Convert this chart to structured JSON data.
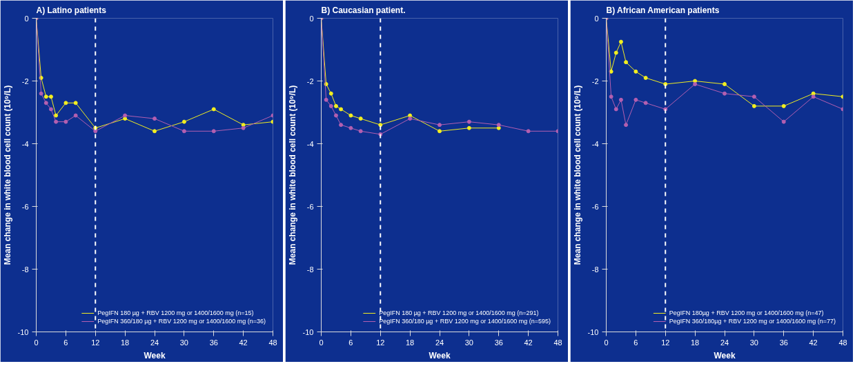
{
  "chart_data": [
    {
      "type": "line",
      "title": "A) Latino patients",
      "xlabel": "Week",
      "ylabel": "Mean change in white blood cell count (10⁹/L)",
      "x": [
        0,
        1,
        2,
        3,
        4,
        6,
        8,
        12,
        18,
        24,
        30,
        36,
        42,
        48
      ],
      "xlim": [
        0,
        48
      ],
      "xticks": [
        0,
        6,
        12,
        18,
        24,
        30,
        36,
        42,
        48
      ],
      "ylim": [
        -10,
        0
      ],
      "yticks": [
        0,
        -2,
        -4,
        -6,
        -8,
        -10
      ],
      "grid": false,
      "legend": "bottom right",
      "marker": "circle",
      "line_style": "solid",
      "ref_lines": [
        {
          "axis": "x",
          "value": 12,
          "color": "#ffffff",
          "line_style": "dashed"
        }
      ],
      "series": [
        {
          "name": "PegIFN 180 µg + RBV 1200 mg or 1400/1600 mg (n=15)",
          "color": "#f2ee20",
          "values": [
            0,
            -1.9,
            -2.5,
            -2.5,
            -3.1,
            -2.7,
            -2.7,
            -3.5,
            -3.2,
            -3.6,
            -3.3,
            -2.9,
            -3.4,
            -3.3
          ]
        },
        {
          "name": "PegIFN 360/180 µg + RBV 1200 mg or 1400/1600 mg (n=36)",
          "color": "#b35fb0",
          "values": [
            0,
            -2.4,
            -2.7,
            -2.9,
            -3.3,
            -3.3,
            -3.1,
            -3.6,
            -3.1,
            -3.2,
            -3.6,
            -3.6,
            -3.5,
            -3.1
          ]
        }
      ]
    },
    {
      "type": "line",
      "title": "B) Caucasian patient.",
      "xlabel": "Week",
      "ylabel": "Mean change in white blood cell count (10⁹/L)",
      "x": [
        0,
        1,
        2,
        3,
        4,
        6,
        8,
        12,
        18,
        24,
        30,
        36,
        42,
        48
      ],
      "xlim": [
        0,
        48
      ],
      "xticks": [
        0,
        6,
        12,
        18,
        24,
        30,
        36,
        42,
        48
      ],
      "ylim": [
        -10,
        0
      ],
      "yticks": [
        0,
        -2,
        -4,
        -6,
        -8,
        -10
      ],
      "grid": false,
      "legend": "bottom right",
      "marker": "circle",
      "line_style": "solid",
      "ref_lines": [
        {
          "axis": "x",
          "value": 12,
          "color": "#ffffff",
          "line_style": "dashed"
        }
      ],
      "series": [
        {
          "name": "PegIFN 180 µg + RBV 1200 mg or 1400/1600 mg (n=291)",
          "color": "#f2ee20",
          "values": [
            0,
            -2.1,
            -2.4,
            -2.8,
            -2.9,
            -3.1,
            -3.2,
            -3.4,
            -3.1,
            -3.6,
            -3.5,
            -3.5,
            null,
            null
          ]
        },
        {
          "name": "PegIFN 360/180 µg + RBV 1200 mg or 1400/1600 mg (n=595)",
          "color": "#b35fb0",
          "values": [
            0,
            -2.6,
            -2.8,
            -3.1,
            -3.4,
            -3.5,
            -3.6,
            -3.7,
            -3.2,
            -3.4,
            -3.3,
            -3.4,
            -3.6,
            -3.6
          ]
        }
      ]
    },
    {
      "type": "line",
      "title": "B) African American patients",
      "xlabel": "Week",
      "ylabel": "Mean change in white blood cell count (10⁹/L)",
      "x": [
        0,
        1,
        2,
        3,
        4,
        6,
        8,
        12,
        18,
        24,
        30,
        36,
        42,
        48
      ],
      "xlim": [
        0,
        48
      ],
      "xticks": [
        0,
        6,
        12,
        18,
        24,
        30,
        36,
        42,
        48
      ],
      "ylim": [
        -10,
        0
      ],
      "yticks": [
        0,
        -2,
        -4,
        -6,
        -8,
        -10
      ],
      "grid": false,
      "legend": "bottom right",
      "marker": "circle",
      "line_style": "solid",
      "ref_lines": [
        {
          "axis": "x",
          "value": 12,
          "color": "#ffffff",
          "line_style": "dashed"
        }
      ],
      "series": [
        {
          "name": "PegIFN 180µg + RBV 1200 mg or 1400/1600 mg (n=47)",
          "color": "#f2ee20",
          "values": [
            0,
            -1.7,
            -1.1,
            -0.75,
            -1.4,
            -1.7,
            -1.9,
            -2.1,
            -2.0,
            -2.1,
            -2.8,
            -2.8,
            -2.4,
            -2.5
          ]
        },
        {
          "name": "PegIFN 360/180µg + RBV 1200 mg or 1400/1600 mg (n=77)",
          "color": "#b35fb0",
          "values": [
            0,
            -2.5,
            -2.9,
            -2.6,
            -3.4,
            -2.6,
            -2.7,
            -2.9,
            -2.1,
            -2.4,
            -2.5,
            -3.3,
            -2.5,
            -2.9
          ]
        }
      ]
    }
  ]
}
